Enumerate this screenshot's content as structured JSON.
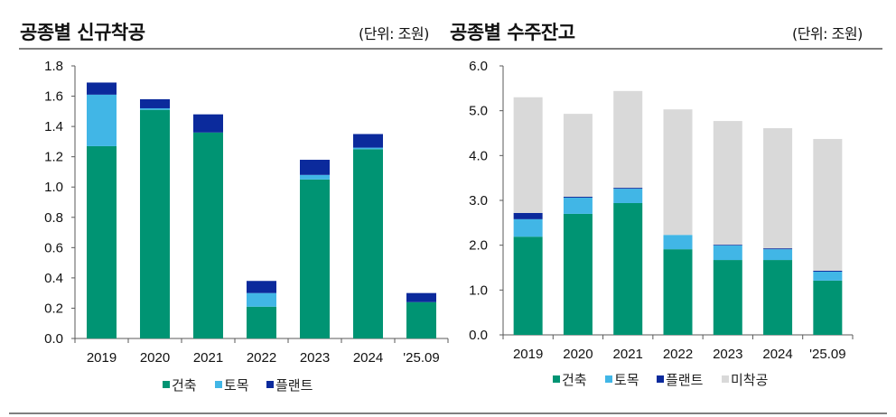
{
  "left": {
    "title": "공종별 신규착공",
    "unit": "(단위: 조원)"
  },
  "right": {
    "title": "공종별 수주잔고",
    "unit": "(단위: 조원)"
  },
  "colors": {
    "건축": "#009473",
    "토목": "#41b6e6",
    "플랜트": "#0b2a9c",
    "미착공": "#d9d9d9",
    "axis": "#595959",
    "rule": "#7f7f7f"
  },
  "chart_data": [
    {
      "type": "bar",
      "stacked": true,
      "title": "공종별 신규착공",
      "unit": "(단위: 조원)",
      "categories": [
        "2019",
        "2020",
        "2021",
        "2022",
        "2023",
        "2024",
        "'25.09"
      ],
      "series": [
        {
          "name": "건축",
          "values": [
            1.27,
            1.51,
            1.36,
            0.21,
            1.05,
            1.25,
            0.24
          ]
        },
        {
          "name": "토목",
          "values": [
            0.34,
            0.01,
            0.0,
            0.09,
            0.03,
            0.01,
            0.0
          ]
        },
        {
          "name": "플랜트",
          "values": [
            0.08,
            0.06,
            0.12,
            0.08,
            0.1,
            0.09,
            0.06
          ]
        }
      ],
      "ylim": [
        0,
        1.8
      ],
      "yticks": [
        "0.0",
        "0.2",
        "0.4",
        "0.6",
        "0.8",
        "1.0",
        "1.2",
        "1.4",
        "1.6",
        "1.8"
      ],
      "ytick_values": [
        0,
        0.2,
        0.4,
        0.6,
        0.8,
        1.0,
        1.2,
        1.4,
        1.6,
        1.8
      ],
      "xlabel": "",
      "ylabel": "",
      "grid": false,
      "legend": [
        "건축",
        "토목",
        "플랜트"
      ],
      "legend_position": "bottom"
    },
    {
      "type": "bar",
      "stacked": true,
      "title": "공종별 수주잔고",
      "unit": "(단위: 조원)",
      "categories": [
        "2019",
        "2020",
        "2021",
        "2022",
        "2023",
        "2024",
        "'25.09"
      ],
      "series": [
        {
          "name": "건축",
          "values": [
            2.19,
            2.7,
            2.94,
            1.91,
            1.67,
            1.67,
            1.21
          ]
        },
        {
          "name": "토목",
          "values": [
            0.39,
            0.36,
            0.32,
            0.32,
            0.33,
            0.24,
            0.2
          ]
        },
        {
          "name": "플랜트",
          "values": [
            0.14,
            0.02,
            0.02,
            0.0,
            0.01,
            0.02,
            0.02
          ]
        },
        {
          "name": "미착공",
          "values": [
            2.58,
            1.85,
            2.16,
            2.8,
            2.76,
            2.68,
            2.94
          ]
        }
      ],
      "ylim": [
        0,
        6.0
      ],
      "yticks": [
        "0.0",
        "1.0",
        "2.0",
        "3.0",
        "4.0",
        "5.0",
        "6.0"
      ],
      "ytick_values": [
        0,
        1,
        2,
        3,
        4,
        5,
        6
      ],
      "xlabel": "",
      "ylabel": "",
      "grid": false,
      "legend": [
        "건축",
        "토목",
        "플랜트",
        "미착공"
      ],
      "legend_position": "bottom"
    }
  ]
}
